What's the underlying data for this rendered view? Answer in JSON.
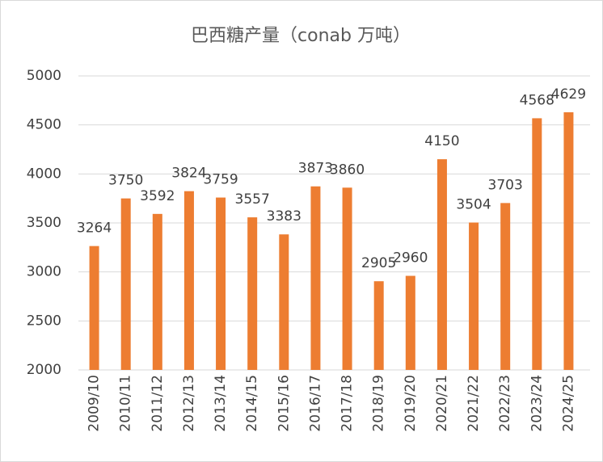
{
  "chart_data": {
    "type": "bar",
    "title": "巴西糖产量（conab 万吨）",
    "categories": [
      "2009/10",
      "2010/11",
      "2011/12",
      "2012/13",
      "2013/14",
      "2014/15",
      "2015/16",
      "2016/17",
      "2017/18",
      "2018/19",
      "2019/20",
      "2020/21",
      "2021/22",
      "2022/23",
      "2023/24",
      "2024/25"
    ],
    "values": [
      3264,
      3750,
      3592,
      3824,
      3759,
      3557,
      3383,
      3873,
      3860,
      2905,
      2960,
      4150,
      3504,
      3703,
      4568,
      4629
    ],
    "color": "#ED7D31",
    "ylim": [
      2000,
      5000
    ],
    "yticks": [
      2000,
      2500,
      3000,
      3500,
      4000,
      4500,
      5000
    ],
    "grid": true
  }
}
